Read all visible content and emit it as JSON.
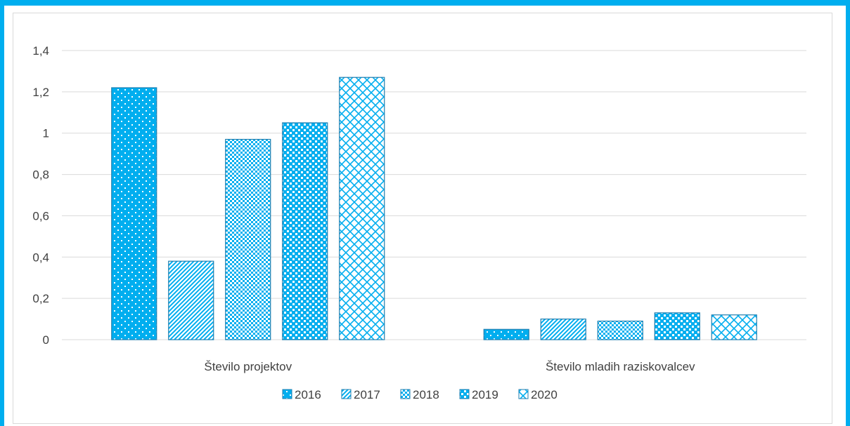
{
  "chart_data": {
    "type": "bar",
    "categories": [
      "Število projektov",
      "Število mladih raziskovalcev"
    ],
    "series": [
      {
        "name": "2016",
        "values": [
          1.22,
          0.05
        ]
      },
      {
        "name": "2017",
        "values": [
          0.38,
          0.1
        ]
      },
      {
        "name": "2018",
        "values": [
          0.97,
          0.09
        ]
      },
      {
        "name": "2019",
        "values": [
          1.05,
          0.13
        ]
      },
      {
        "name": "2020",
        "values": [
          1.27,
          0.12
        ]
      }
    ],
    "title": "",
    "xlabel": "",
    "ylabel": "",
    "ylim": [
      0,
      1.4
    ],
    "yticks": [
      "0",
      "0,2",
      "0,4",
      "0,6",
      "0,8",
      "1",
      "1,2",
      "1,4"
    ],
    "grid": true,
    "legend_position": "bottom"
  },
  "colors": {
    "frame": "#00aeef",
    "bar_fill": "#00aeef",
    "bar_border": "#1f7fb0",
    "gridline": "#d9d9d9",
    "text": "#404040"
  }
}
